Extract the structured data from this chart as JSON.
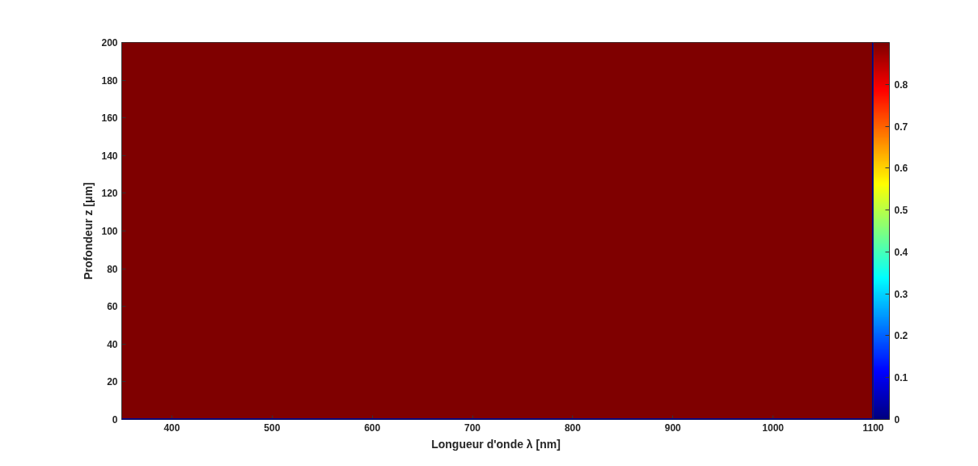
{
  "chart_data": {
    "type": "heatmap",
    "xlabel": "Longueur d'onde  λ [nm]",
    "ylabel": "Profondeur z [μm]",
    "cells": [
      [
        0.9
      ]
    ],
    "ref_lines": [
      {
        "axis": "y",
        "value": 0,
        "label": null,
        "color": "#00008f"
      },
      {
        "axis": "x",
        "value": 1100,
        "label": null,
        "color": "#00008f"
      }
    ],
    "clim": [
      0,
      0.9
    ],
    "cticks": [
      0,
      0.1,
      0.2,
      0.3,
      0.4,
      0.5,
      0.6,
      0.7,
      0.8
    ],
    "xlim": [
      350,
      1100
    ],
    "ylim": [
      0,
      200
    ],
    "xticks": [
      400,
      500,
      600,
      700,
      800,
      900,
      1000,
      1100
    ],
    "yticks": [
      0,
      20,
      40,
      60,
      80,
      100,
      120,
      140,
      160,
      180,
      200
    ],
    "grid": false
  }
}
